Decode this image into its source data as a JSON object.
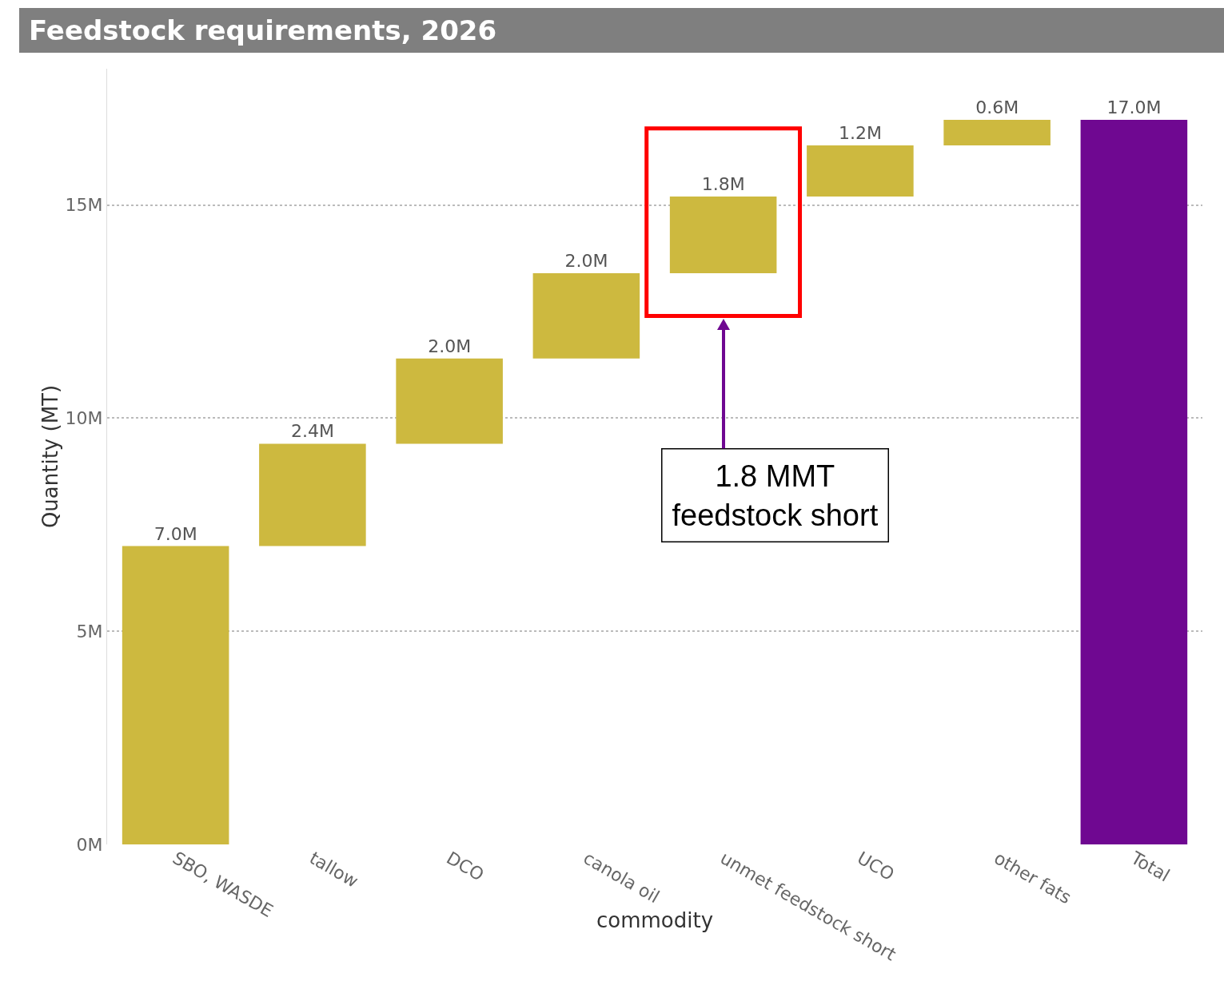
{
  "chart_data": {
    "type": "bar",
    "title": "Feedstock requirements, 2026",
    "xlabel": "commodity",
    "ylabel": "Quantity (MT)",
    "categories": [
      "SBO, WASDE",
      "tallow",
      "DCO",
      "canola oil",
      "unmet feedstock short",
      "UCO",
      "other fats",
      "Total"
    ],
    "values": [
      7.0,
      2.4,
      2.0,
      2.0,
      1.8,
      1.2,
      0.6,
      17.0
    ],
    "base": [
      0,
      7.0,
      9.4,
      11.4,
      13.4,
      15.2,
      16.4,
      0
    ],
    "colors": [
      "#cdb93f",
      "#cdb93f",
      "#cdb93f",
      "#cdb93f",
      "#cdb93f",
      "#cdb93f",
      "#cdb93f",
      "#6f0891"
    ],
    "value_labels": [
      "7.0M",
      "2.4M",
      "2.0M",
      "2.0M",
      "1.8M",
      "1.2M",
      "0.6M",
      "17.0M"
    ],
    "ylim": [
      0,
      18.2
    ],
    "yticks": [
      {
        "value": 0,
        "label": "0M"
      },
      {
        "value": 5,
        "label": "5M"
      },
      {
        "value": 10,
        "label": "10M"
      },
      {
        "value": 15,
        "label": "15M"
      }
    ],
    "grid": "y",
    "legend": false,
    "annotations": [
      "1.8 MMT\nfeedstock short"
    ]
  }
}
